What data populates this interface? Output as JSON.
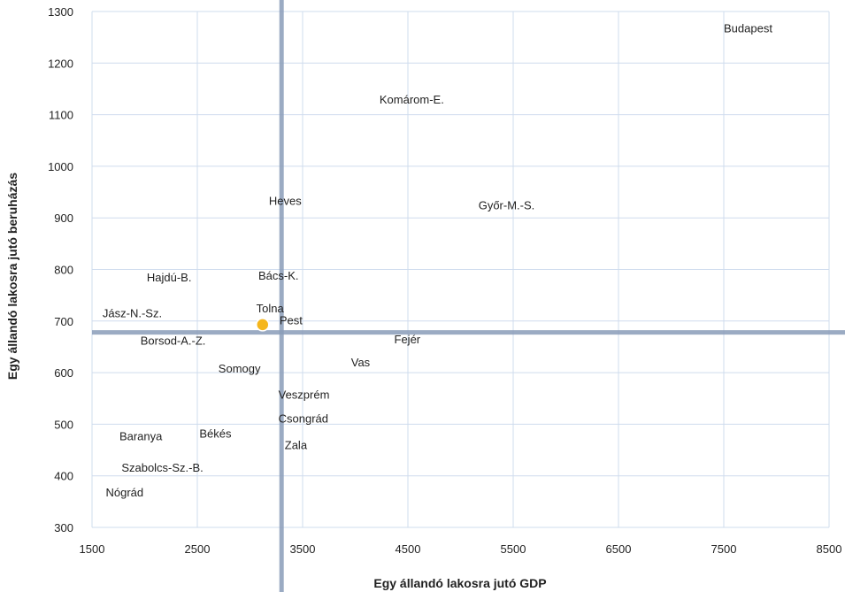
{
  "chart_data": {
    "type": "scatter",
    "title": "",
    "xlabel": "Egy állandó lakosra jutó GDP",
    "ylabel": "Egy állandó lakosra jutó beruházás",
    "xlim": [
      1500,
      8500
    ],
    "ylim": [
      300,
      1300
    ],
    "x_ticks": [
      1500,
      2500,
      3500,
      4500,
      5500,
      6500,
      7500,
      8500
    ],
    "y_ticks": [
      300,
      400,
      500,
      600,
      700,
      800,
      900,
      1000,
      1100,
      1200,
      1300
    ],
    "grid": true,
    "reference_lines": {
      "x": 3300,
      "y": 678,
      "color": "#8a9cb8"
    },
    "highlight_point": {
      "x": 3120,
      "y": 693,
      "color": "#f5b61c"
    },
    "points": [
      {
        "label": "Budapest",
        "x": 7500,
        "y": 1260
      },
      {
        "label": "Komárom-E.",
        "x": 4230,
        "y": 1122
      },
      {
        "label": "Heves",
        "x": 3180,
        "y": 925
      },
      {
        "label": "Győr-M.-S.",
        "x": 5170,
        "y": 917
      },
      {
        "label": "Hajdú-B.",
        "x": 2020,
        "y": 777
      },
      {
        "label": "Bács-K.",
        "x": 3080,
        "y": 780
      },
      {
        "label": "Jász-N.-Sz.",
        "x": 1600,
        "y": 707
      },
      {
        "label": "Tolna",
        "x": 3060,
        "y": 717
      },
      {
        "label": "Pest",
        "x": 3280,
        "y": 694
      },
      {
        "label": "Borsod-A.-Z.",
        "x": 1960,
        "y": 654
      },
      {
        "label": "Fejér",
        "x": 4370,
        "y": 657
      },
      {
        "label": "Vas",
        "x": 3960,
        "y": 612
      },
      {
        "label": "Somogy",
        "x": 2700,
        "y": 600
      },
      {
        "label": "Veszprém",
        "x": 3270,
        "y": 550
      },
      {
        "label": "Csongrád",
        "x": 3270,
        "y": 503
      },
      {
        "label": "Baranya",
        "x": 1760,
        "y": 469
      },
      {
        "label": "Békés",
        "x": 2520,
        "y": 474
      },
      {
        "label": "Zala",
        "x": 3330,
        "y": 452
      },
      {
        "label": "Szabolcs-Sz.-B.",
        "x": 1780,
        "y": 408
      },
      {
        "label": "Nógrád",
        "x": 1630,
        "y": 360
      }
    ]
  }
}
